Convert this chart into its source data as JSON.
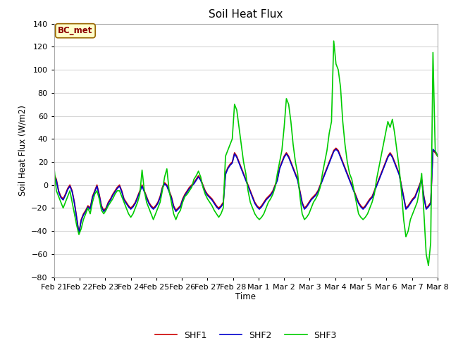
{
  "title": "Soil Heat Flux",
  "ylabel": "Soil Heat Flux (W/m2)",
  "xlabel": "Time",
  "ylim": [
    -80,
    140
  ],
  "annotation_text": "BC_met",
  "legend_labels": [
    "SHF1",
    "SHF2",
    "SHF3"
  ],
  "line_colors": [
    "#cc0000",
    "#0000cc",
    "#00cc00"
  ],
  "fig_facecolor": "#ffffff",
  "plot_facecolor": "#ffffff",
  "grid_color": "#d8d8d8",
  "tick_labels": [
    "Feb 21",
    "Feb 22",
    "Feb 23",
    "Feb 24",
    "Feb 25",
    "Feb 26",
    "Feb 27",
    "Feb 28",
    "Mar 1",
    "Mar 2",
    "Mar 3",
    "Mar 4",
    "Mar 5",
    "Mar 6",
    "Mar 7",
    "Mar 8"
  ],
  "yticks": [
    -80,
    -60,
    -40,
    -20,
    0,
    20,
    40,
    60,
    80,
    100,
    120,
    140
  ],
  "shf1": [
    9,
    5,
    -5,
    -10,
    -12,
    -8,
    -3,
    0,
    -5,
    -15,
    -28,
    -42,
    -30,
    -25,
    -22,
    -18,
    -20,
    -10,
    -5,
    0,
    -8,
    -18,
    -22,
    -20,
    -15,
    -12,
    -8,
    -5,
    -2,
    0,
    -5,
    -12,
    -15,
    -18,
    -20,
    -18,
    -15,
    -10,
    -5,
    0,
    -5,
    -10,
    -15,
    -18,
    -20,
    -18,
    -15,
    -10,
    -2,
    2,
    0,
    -5,
    -10,
    -18,
    -22,
    -20,
    -18,
    -12,
    -8,
    -5,
    -2,
    0,
    2,
    5,
    8,
    5,
    0,
    -5,
    -8,
    -10,
    -12,
    -15,
    -18,
    -20,
    -18,
    -15,
    10,
    15,
    18,
    20,
    28,
    25,
    20,
    15,
    10,
    5,
    0,
    -5,
    -10,
    -15,
    -18,
    -20,
    -18,
    -15,
    -12,
    -10,
    -8,
    -5,
    0,
    5,
    15,
    20,
    25,
    28,
    25,
    20,
    15,
    10,
    5,
    -5,
    -15,
    -20,
    -18,
    -15,
    -12,
    -10,
    -8,
    -5,
    0,
    5,
    10,
    15,
    20,
    25,
    30,
    32,
    30,
    25,
    20,
    15,
    10,
    5,
    0,
    -5,
    -10,
    -15,
    -18,
    -20,
    -18,
    -15,
    -12,
    -10,
    -5,
    0,
    5,
    10,
    15,
    20,
    25,
    28,
    25,
    20,
    15,
    10,
    0,
    -10,
    -20,
    -18,
    -15,
    -12,
    -10,
    -5,
    0,
    5,
    -10,
    -20,
    -18,
    -15,
    30,
    28,
    25
  ],
  "shf2": [
    8,
    4,
    -6,
    -11,
    -13,
    -9,
    -4,
    -1,
    -6,
    -16,
    -29,
    -42,
    -31,
    -26,
    -23,
    -19,
    -21,
    -11,
    -6,
    -1,
    -9,
    -19,
    -23,
    -21,
    -16,
    -13,
    -9,
    -6,
    -3,
    -1,
    -6,
    -13,
    -16,
    -19,
    -21,
    -19,
    -16,
    -11,
    -6,
    -1,
    -6,
    -11,
    -16,
    -19,
    -21,
    -19,
    -16,
    -11,
    -3,
    1,
    -1,
    -6,
    -11,
    -19,
    -23,
    -21,
    -19,
    -13,
    -9,
    -6,
    -3,
    -1,
    1,
    4,
    7,
    4,
    -1,
    -6,
    -9,
    -11,
    -13,
    -16,
    -19,
    -21,
    -19,
    -16,
    9,
    14,
    17,
    19,
    27,
    24,
    19,
    14,
    9,
    4,
    -1,
    -6,
    -11,
    -16,
    -19,
    -21,
    -19,
    -16,
    -13,
    -11,
    -9,
    -6,
    -1,
    4,
    14,
    19,
    24,
    27,
    24,
    19,
    14,
    9,
    4,
    -6,
    -16,
    -21,
    -19,
    -16,
    -13,
    -11,
    -9,
    -6,
    -1,
    4,
    9,
    14,
    19,
    24,
    29,
    31,
    29,
    24,
    19,
    14,
    9,
    4,
    -1,
    -6,
    -11,
    -16,
    -19,
    -21,
    -19,
    -16,
    -13,
    -11,
    -6,
    -1,
    4,
    9,
    14,
    19,
    24,
    27,
    24,
    19,
    14,
    9,
    -1,
    -11,
    -21,
    -19,
    -16,
    -13,
    -11,
    -6,
    -1,
    4,
    -11,
    -21,
    -19,
    -16,
    31,
    29,
    26
  ],
  "shf3": [
    15,
    -5,
    -10,
    -15,
    -20,
    -15,
    -10,
    -5,
    -15,
    -25,
    -35,
    -43,
    -38,
    -30,
    -25,
    -20,
    -25,
    -15,
    -8,
    -5,
    -12,
    -22,
    -25,
    -22,
    -18,
    -15,
    -12,
    -8,
    -5,
    -5,
    -10,
    -15,
    -20,
    -25,
    -28,
    -25,
    -20,
    -15,
    -8,
    13,
    -5,
    -15,
    -20,
    -25,
    -30,
    -25,
    -20,
    -15,
    -5,
    7,
    14,
    -5,
    -15,
    -25,
    -30,
    -25,
    -22,
    -15,
    -10,
    -8,
    -5,
    -2,
    5,
    8,
    12,
    7,
    -2,
    -8,
    -12,
    -15,
    -18,
    -22,
    -25,
    -28,
    -25,
    -20,
    25,
    30,
    35,
    40,
    70,
    65,
    50,
    35,
    20,
    10,
    -5,
    -15,
    -20,
    -25,
    -28,
    -30,
    -28,
    -25,
    -20,
    -15,
    -12,
    -8,
    -2,
    10,
    20,
    30,
    50,
    75,
    70,
    55,
    35,
    20,
    10,
    -10,
    -25,
    -30,
    -28,
    -25,
    -20,
    -15,
    -12,
    -8,
    -2,
    10,
    20,
    30,
    45,
    55,
    125,
    105,
    100,
    85,
    55,
    35,
    20,
    10,
    5,
    -5,
    -15,
    -25,
    -28,
    -30,
    -28,
    -25,
    -20,
    -15,
    -8,
    5,
    15,
    25,
    35,
    45,
    55,
    50,
    57,
    45,
    30,
    15,
    -5,
    -30,
    -45,
    -40,
    -30,
    -25,
    -20,
    -15,
    -5,
    10,
    -25,
    -60,
    -70,
    -50,
    115,
    30,
    25
  ]
}
